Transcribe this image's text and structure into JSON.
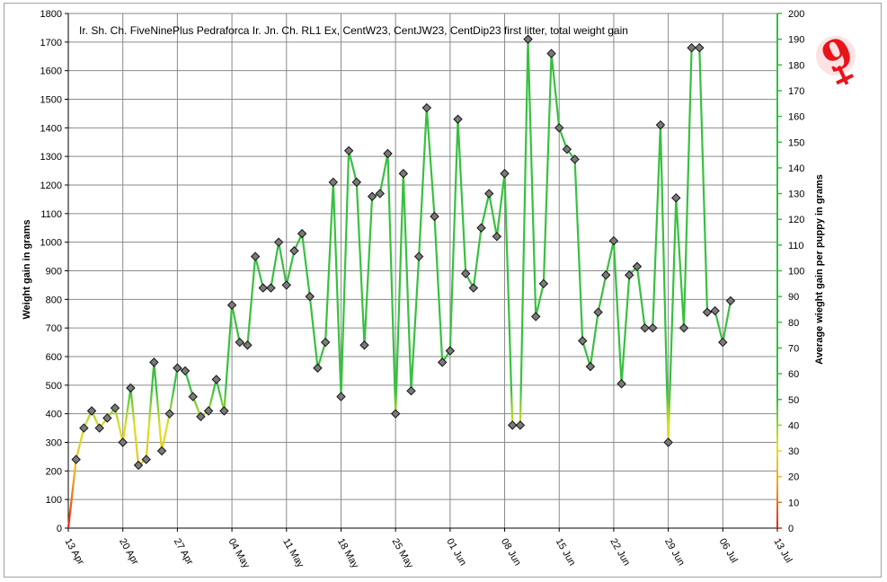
{
  "chart_data": {
    "type": "line",
    "title": "Ir. Sh. Ch. FiveNinePlus Pedraforca Ir. Jn. Ch. RL1 Ex, CentW23, CentJW23, CentDip23 first litter, total weight gain",
    "ylabel_left": "Weight gain  in grams",
    "ylabel_right": "Average wieght gain per puppy in grams",
    "y_left_range": [
      0,
      1800
    ],
    "y_right_range": [
      0,
      200
    ],
    "y_left_ticks": [
      0,
      100,
      200,
      300,
      400,
      500,
      600,
      700,
      800,
      900,
      1000,
      1100,
      1200,
      1300,
      1400,
      1500,
      1600,
      1700,
      1800
    ],
    "y_right_ticks": [
      0,
      10,
      20,
      30,
      40,
      50,
      60,
      70,
      80,
      90,
      100,
      110,
      120,
      130,
      140,
      150,
      160,
      170,
      180,
      190,
      200
    ],
    "x_ticks": [
      "13 Apr",
      "20 Apr",
      "27 Apr",
      "04 May",
      "11 May",
      "18 May",
      "25 May",
      "01 Jun",
      "08 Jun",
      "15 Jun",
      "22 Jun",
      "29 Jun",
      "06 Jul",
      "13 Jul"
    ],
    "x_range_days": [
      0,
      91
    ],
    "grid": true,
    "series": [
      {
        "x_days": [
          0,
          1,
          2,
          3,
          4,
          5,
          6,
          7,
          8,
          9,
          10,
          11,
          12,
          13,
          14,
          15,
          16,
          17,
          18,
          19,
          20,
          21,
          22,
          23,
          24,
          25,
          26,
          27,
          28,
          29,
          30,
          31,
          32,
          33,
          34,
          35,
          36,
          37,
          38,
          39,
          40,
          41,
          42,
          43,
          44,
          45,
          46,
          47,
          48,
          49,
          50,
          51,
          52,
          53,
          54,
          55,
          56,
          57,
          58,
          59,
          60,
          61,
          62,
          63,
          64,
          65,
          66,
          67,
          68,
          69,
          70,
          71,
          72,
          73,
          74,
          75,
          76,
          77,
          78,
          79,
          80,
          81,
          82,
          83,
          84,
          85,
          86
        ],
        "values": [
          0,
          240,
          350,
          410,
          350,
          385,
          420,
          300,
          490,
          220,
          240,
          580,
          270,
          400,
          560,
          550,
          460,
          390,
          410,
          520,
          410,
          780,
          650,
          640,
          950,
          840,
          840,
          1000,
          850,
          970,
          1030,
          810,
          560,
          650,
          1210,
          460,
          1320,
          1210,
          640,
          1160,
          1170,
          1310,
          400,
          1240,
          480,
          950,
          1470,
          1090,
          580,
          620,
          1430,
          890,
          840,
          1050,
          1170,
          1020,
          1240,
          360,
          360,
          1710,
          740,
          855,
          1660,
          1400,
          1325,
          1290,
          655,
          565,
          755,
          885,
          1005,
          505,
          885,
          915,
          700,
          700,
          1410,
          300,
          1155,
          700,
          1680,
          1680,
          755,
          760,
          650,
          795,
          null
        ]
      }
    ]
  },
  "logo": {
    "text": "9",
    "color": "#e8141b"
  }
}
